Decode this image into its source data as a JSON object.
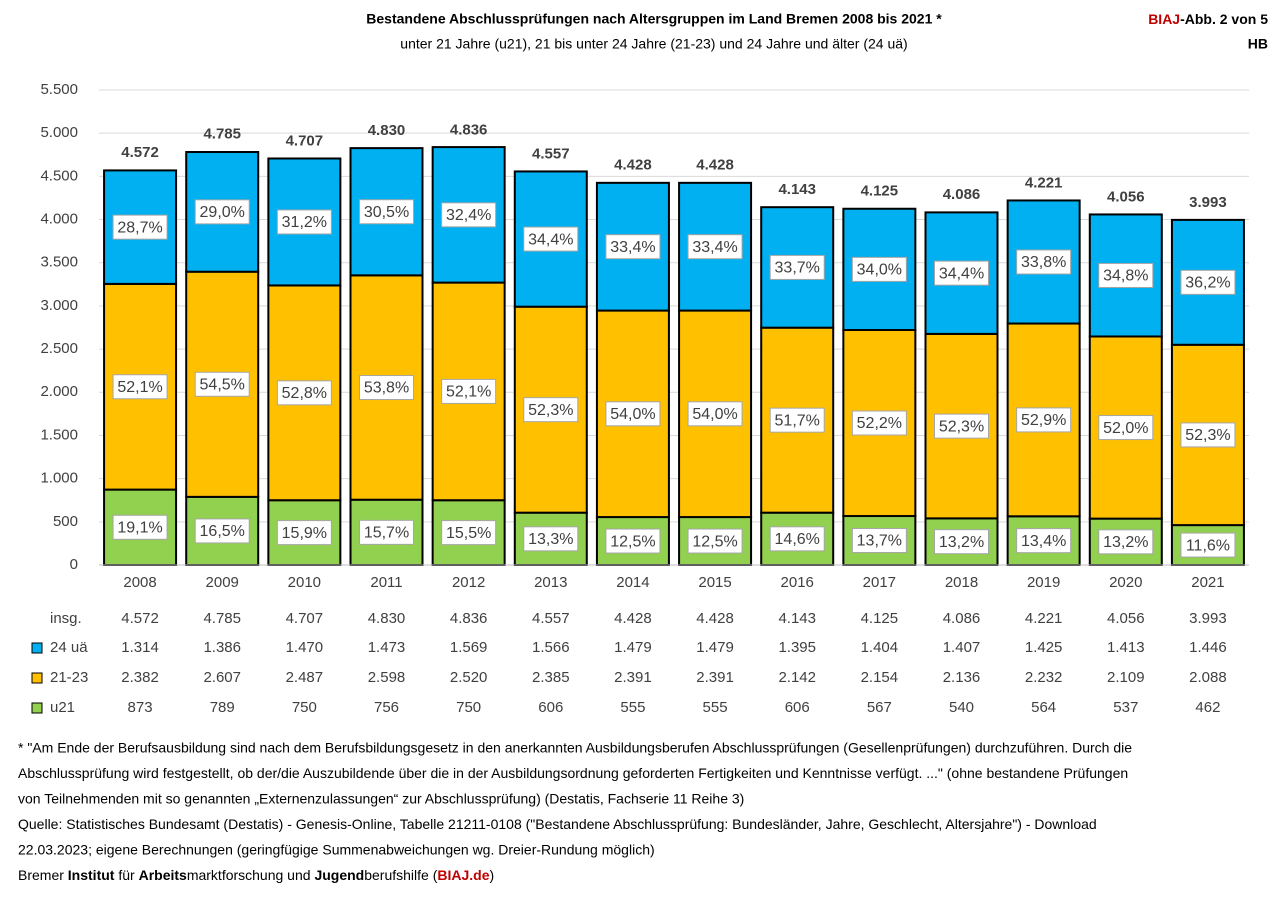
{
  "chart_data": {
    "type": "stacked_bar",
    "title": "Bestandene Abschlussprüfungen nach Altersgruppen im Land Bremen 2008 bis 2021 *",
    "subtitle": "unter 21 Jahre (u21), 21 bis unter 24 Jahre (21-23) und 24 Jahre und älter (24 uä)",
    "corner_label": {
      "brand": "BIAJ",
      "text": "-Abb. 2 von 5",
      "region": "HB"
    },
    "categories": [
      "2008",
      "2009",
      "2010",
      "2011",
      "2012",
      "2013",
      "2014",
      "2015",
      "2016",
      "2017",
      "2018",
      "2019",
      "2020",
      "2021"
    ],
    "ylim": [
      0,
      5500
    ],
    "yticks": [
      {
        "value": 0,
        "label": "0"
      },
      {
        "value": 500,
        "label": "500"
      },
      {
        "value": 1000,
        "label": "1.000"
      },
      {
        "value": 1500,
        "label": "1.500"
      },
      {
        "value": 2000,
        "label": "2.000"
      },
      {
        "value": 2500,
        "label": "2.500"
      },
      {
        "value": 3000,
        "label": "3.000"
      },
      {
        "value": 3500,
        "label": "3.500"
      },
      {
        "value": 4000,
        "label": "4.000"
      },
      {
        "value": 4500,
        "label": "4.500"
      },
      {
        "value": 5000,
        "label": "5.000"
      },
      {
        "value": 5500,
        "label": "5.500"
      }
    ],
    "grid": true,
    "totals": {
      "name": "insg.",
      "values": [
        4572,
        4785,
        4707,
        4830,
        4836,
        4557,
        4428,
        4428,
        4143,
        4125,
        4086,
        4221,
        4056,
        3993
      ],
      "value_labels": [
        "4.572",
        "4.785",
        "4.707",
        "4.830",
        "4.836",
        "4.557",
        "4.428",
        "4.428",
        "4.143",
        "4.125",
        "4.086",
        "4.221",
        "4.056",
        "3.993"
      ]
    },
    "series": [
      {
        "name": "u21",
        "color": "#92d050",
        "values": [
          873,
          789,
          750,
          756,
          750,
          606,
          555,
          555,
          606,
          567,
          540,
          564,
          537,
          462
        ],
        "value_labels": [
          "873",
          "789",
          "750",
          "756",
          "750",
          "606",
          "555",
          "555",
          "606",
          "567",
          "540",
          "564",
          "537",
          "462"
        ],
        "share_values": [
          19.1,
          16.5,
          15.9,
          15.7,
          15.5,
          13.3,
          12.5,
          12.5,
          14.6,
          13.7,
          13.2,
          13.4,
          13.2,
          11.6
        ],
        "share_labels": [
          "19,1%",
          "16,5%",
          "15,9%",
          "15,7%",
          "15,5%",
          "13,3%",
          "12,5%",
          "12,5%",
          "14,6%",
          "13,7%",
          "13,2%",
          "13,4%",
          "13,2%",
          "11,6%"
        ]
      },
      {
        "name": "21-23",
        "color": "#ffc000",
        "values": [
          2382,
          2607,
          2487,
          2598,
          2520,
          2385,
          2391,
          2391,
          2142,
          2154,
          2136,
          2232,
          2109,
          2088
        ],
        "value_labels": [
          "2.382",
          "2.607",
          "2.487",
          "2.598",
          "2.520",
          "2.385",
          "2.391",
          "2.391",
          "2.142",
          "2.154",
          "2.136",
          "2.232",
          "2.109",
          "2.088"
        ],
        "share_values": [
          52.1,
          54.5,
          52.8,
          53.8,
          52.1,
          52.3,
          54.0,
          54.0,
          51.7,
          52.2,
          52.3,
          52.9,
          52.0,
          52.3
        ],
        "share_labels": [
          "52,1%",
          "54,5%",
          "52,8%",
          "53,8%",
          "52,1%",
          "52,3%",
          "54,0%",
          "54,0%",
          "51,7%",
          "52,2%",
          "52,3%",
          "52,9%",
          "52,0%",
          "52,3%"
        ]
      },
      {
        "name": "24 uä",
        "color": "#00b0f0",
        "values": [
          1314,
          1386,
          1470,
          1473,
          1569,
          1566,
          1479,
          1479,
          1395,
          1404,
          1407,
          1425,
          1413,
          1446
        ],
        "value_labels": [
          "1.314",
          "1.386",
          "1.470",
          "1.473",
          "1.569",
          "1.566",
          "1.479",
          "1.479",
          "1.395",
          "1.404",
          "1.407",
          "1.425",
          "1.413",
          "1.446"
        ],
        "share_values": [
          28.7,
          29.0,
          31.2,
          30.5,
          32.4,
          34.4,
          33.4,
          33.4,
          33.7,
          34.0,
          34.4,
          33.8,
          34.8,
          36.2
        ],
        "share_labels": [
          "28,7%",
          "29,0%",
          "31,2%",
          "30,5%",
          "32,4%",
          "34,4%",
          "33,4%",
          "33,4%",
          "33,7%",
          "34,0%",
          "34,4%",
          "33,8%",
          "34,8%",
          "36,2%"
        ]
      }
    ],
    "notes": [
      "* \"Am Ende der Berufsausbildung sind nach dem Berufsbildungsgesetz in den anerkannten Ausbildungsberufen Abschlussprüfungen (Gesellenprüfungen) durchzuführen. Durch die",
      "Abschlussprüfung wird festgestellt, ob der/die Auszubildende über die in der Ausbildungsordnung geforderten Fertigkeiten und Kenntnisse verfügt. ...\" (ohne bestandene Prüfungen",
      "von Teilnehmenden mit so genannten „Externenzulassungen“ zur Abschlussprüfung) (Destatis, Fachserie 11 Reihe 3)",
      "Quelle: Statistisches Bundesamt (Destatis) - Genesis-Online, Tabelle 21211-0108 (\"Bestandene Abschlussprüfung: Bundesländer, Jahre, Geschlecht, Altersjahre\") - Download",
      "22.03.2023; eigene Berechnungen (geringfügige Summenabweichungen wg. Dreier-Rundung möglich)"
    ],
    "credit": [
      {
        "text": "Bremer ",
        "style": "normal"
      },
      {
        "text": "Institut",
        "style": "bold"
      },
      {
        "text": " für ",
        "style": "normal"
      },
      {
        "text": "Arbeits",
        "style": "bold"
      },
      {
        "text": "marktforschung und ",
        "style": "normal"
      },
      {
        "text": "Jugend",
        "style": "bold"
      },
      {
        "text": "berufshilfe (",
        "style": "normal"
      },
      {
        "text": "BIAJ.de",
        "style": "brand"
      },
      {
        "text": ")",
        "style": "normal"
      }
    ]
  }
}
